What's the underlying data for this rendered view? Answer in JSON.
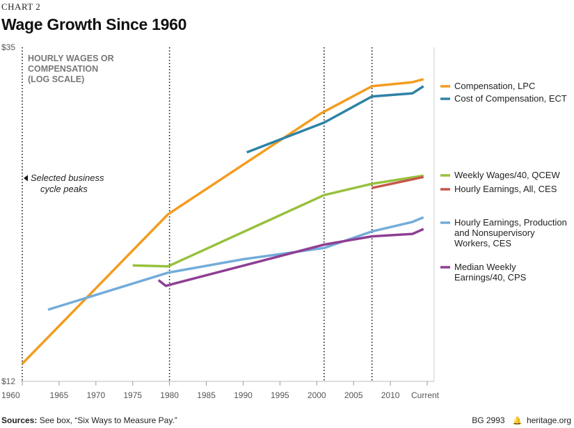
{
  "header": {
    "chart_number": "CHART 2",
    "title": "Wage Growth Since 1960"
  },
  "footer": {
    "sources_label": "Sources:",
    "sources_text": "See box, “Six Ways to Measure Pay.”",
    "report_id": "BG 2993",
    "site": "heritage.org",
    "bell_icon": "bell-icon"
  },
  "chart_data": {
    "type": "line",
    "title": "Wage Growth Since 1960",
    "ylabel_lines": [
      "HOURLY WAGES OR",
      "COMPENSATION",
      "(LOG SCALE)"
    ],
    "xlabel": "",
    "y_scale": "log",
    "ylim": [
      12,
      35
    ],
    "y_ticks": [
      {
        "value": 12,
        "label": "$12"
      },
      {
        "value": 35,
        "label": "$35"
      }
    ],
    "x_range": [
      1960,
      2015
    ],
    "x_ticks": [
      {
        "value": 1960,
        "label": "1960"
      },
      {
        "value": 1965,
        "label": "1965"
      },
      {
        "value": 1970,
        "label": "1970"
      },
      {
        "value": 1975,
        "label": "1975"
      },
      {
        "value": 1980,
        "label": "1980"
      },
      {
        "value": 1985,
        "label": "1985"
      },
      {
        "value": 1990,
        "label": "1990"
      },
      {
        "value": 1995,
        "label": "1995"
      },
      {
        "value": 2000,
        "label": "2000"
      },
      {
        "value": 2005,
        "label": "2005"
      },
      {
        "value": 2010,
        "label": "2010"
      },
      {
        "value": 2015,
        "label": "Current"
      }
    ],
    "grid": false,
    "business_cycle_peaks": [
      1960,
      1980,
      2001,
      2007.5
    ],
    "annotation_lines": [
      "Selected business",
      "cycle peaks"
    ],
    "series": [
      {
        "name": "Compensation, LPC",
        "label_lines": [
          "Compensation, LPC"
        ],
        "color": "#f39c1f",
        "points": [
          [
            1960,
            12.7
          ],
          [
            1979.8,
            20.5
          ],
          [
            2000.5,
            28.3
          ],
          [
            2007.5,
            30.9
          ],
          [
            2013,
            31.3
          ],
          [
            2014.5,
            31.6
          ]
        ]
      },
      {
        "name": "Cost of Compensation, ECT",
        "label_lines": [
          "Cost of Compensation, ECT"
        ],
        "color": "#2e82a7",
        "points": [
          [
            1990.5,
            25.0
          ],
          [
            2001,
            27.5
          ],
          [
            2007.5,
            29.9
          ],
          [
            2013,
            30.2
          ],
          [
            2014.5,
            30.9
          ]
        ]
      },
      {
        "name": "Weekly Wages/40, QCEW",
        "label_lines": [
          "Weekly Wages/40, QCEW"
        ],
        "color": "#97c13c",
        "points": [
          [
            1975,
            17.4
          ],
          [
            1979.8,
            17.35
          ],
          [
            2001,
            21.8
          ],
          [
            2007.5,
            22.6
          ],
          [
            2014.5,
            23.2
          ]
        ]
      },
      {
        "name": "Hourly Earnings, All, CES",
        "label_lines": [
          "Hourly Earnings, All, CES"
        ],
        "color": "#c6574a",
        "points": [
          [
            2007.5,
            22.3
          ],
          [
            2014.5,
            23.1
          ]
        ]
      },
      {
        "name": "Hourly Earnings, Production and Nonsupervisory Workers, CES",
        "label_lines": [
          "Hourly Earnings, Production",
          "and Nonsupervisory",
          "Workers, CES"
        ],
        "color": "#73acd9",
        "points": [
          [
            1963.5,
            15.1
          ],
          [
            1979.8,
            17.0
          ],
          [
            1990,
            17.75
          ],
          [
            2001,
            18.4
          ],
          [
            2007.5,
            19.4
          ],
          [
            2013,
            20.0
          ],
          [
            2014.5,
            20.3
          ]
        ]
      },
      {
        "name": "Median Weekly Earnings/40, CPS",
        "label_lines": [
          "Median Weekly",
          "Earnings/40, CPS"
        ],
        "color": "#8f3e93",
        "points": [
          [
            1978.5,
            16.6
          ],
          [
            1979.5,
            16.3
          ],
          [
            2001,
            18.6
          ],
          [
            2007.5,
            19.1
          ],
          [
            2013,
            19.25
          ],
          [
            2014.5,
            19.55
          ]
        ]
      }
    ]
  }
}
